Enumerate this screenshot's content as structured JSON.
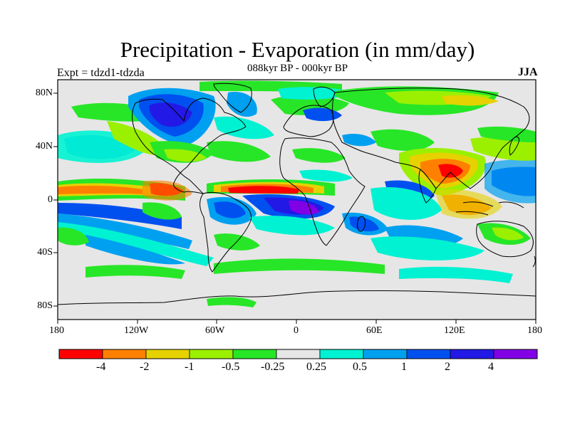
{
  "figure": {
    "title": "Precipitation - Evaporation (in mm/day)",
    "subtitle": "088kyr BP - 000kyr BP",
    "left_label": "Expt = tdzd1-tdzda",
    "right_label": "JJA"
  },
  "map": {
    "projection": "cylindrical-equidistant",
    "lon_range": [
      -180,
      180
    ],
    "lat_range": [
      -90,
      90
    ],
    "y_ticks": [
      "80N",
      "40N",
      "0",
      "40S",
      "80S"
    ],
    "x_ticks": [
      "180",
      "120W",
      "60W",
      "0",
      "60E",
      "120E",
      "180"
    ],
    "background_color": "#e6e6e6",
    "coastline_color": "#000000"
  },
  "colorbar": {
    "colors": [
      "#ff0000",
      "#ff8000",
      "#e6d200",
      "#9bf000",
      "#27e627",
      "#e6e6e6",
      "#00f2d2",
      "#00a0f0",
      "#0050f0",
      "#2319e6",
      "#8200e6"
    ],
    "labels": [
      "-4",
      "-2",
      "-1",
      "-0.5",
      "-0.25",
      "0.25",
      "0.5",
      "1",
      "2",
      "4"
    ]
  }
}
